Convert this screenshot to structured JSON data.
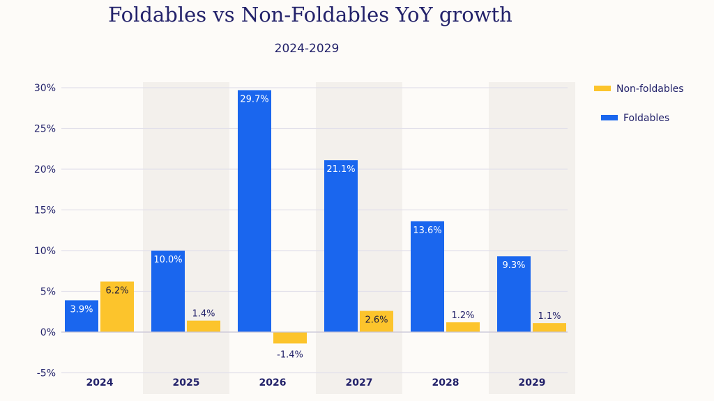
{
  "chart_data": {
    "type": "bar",
    "title": "Foldables vs Non-Foldables YoY growth",
    "subtitle": "2024-2029",
    "categories": [
      "2024",
      "2025",
      "2026",
      "2027",
      "2028",
      "2029"
    ],
    "series": [
      {
        "name": "Foldables",
        "color": "#1a66ee",
        "values": [
          3.9,
          10.0,
          29.7,
          21.1,
          13.6,
          9.3
        ],
        "labels": [
          "3.9%",
          "10.0%",
          "29.7%",
          "21.1%",
          "13.6%",
          "9.3%"
        ]
      },
      {
        "name": "Non-foldables",
        "color": "#fcc42c",
        "values": [
          6.2,
          1.4,
          -1.4,
          2.6,
          1.2,
          1.1
        ],
        "labels": [
          "6.2%",
          "1.4%",
          "-1.4%",
          "2.6%",
          "1.2%",
          "1.1%"
        ]
      }
    ],
    "ylim": [
      -5,
      30
    ],
    "yticks": [
      -5,
      0,
      5,
      10,
      15,
      20,
      25,
      30
    ],
    "ytick_labels": [
      "-5%",
      "0%",
      "5%",
      "10%",
      "15%",
      "20%",
      "25%",
      "30%"
    ],
    "xlabel": "",
    "ylabel": "",
    "grid": true,
    "legend": {
      "placement": "top-right",
      "entries": [
        "Non-foldables",
        "Foldables"
      ]
    },
    "shaded_categories": [
      "2025",
      "2027",
      "2029"
    ],
    "colors": {
      "text": "#23226a",
      "shade": "#f3f0ec",
      "grid": "#e2e0ea",
      "background": "#fdfbf8"
    }
  }
}
